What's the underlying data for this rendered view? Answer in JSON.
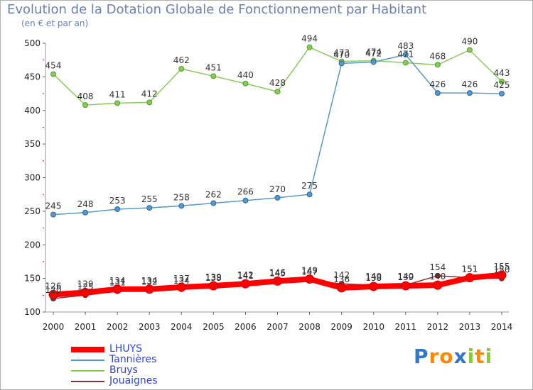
{
  "chart_data": {
    "type": "line",
    "title": "Evolution de la Dotation Globale de Fonctionnement par Habitant",
    "subtitle": "(en € et par an)",
    "xlabel": "",
    "ylabel": "",
    "ylim": [
      100,
      500
    ],
    "yticks": [
      100,
      150,
      200,
      250,
      300,
      350,
      400,
      450,
      500
    ],
    "grid": false,
    "categories": [
      "2000",
      "2001",
      "2002",
      "2003",
      "2004",
      "2005",
      "2006",
      "2007",
      "2008",
      "2009",
      "2010",
      "2011",
      "2012",
      "2013",
      "2014"
    ],
    "series": [
      {
        "name": "LHUYS",
        "color": "#ff0000",
        "values": [
          126,
          129,
          134,
          134,
          137,
          139,
          142,
          146,
          149,
          136,
          138,
          139,
          140,
          151,
          155
        ]
      },
      {
        "name": "Tannières",
        "color": "#5599cc",
        "values": [
          245,
          248,
          253,
          255,
          258,
          262,
          266,
          270,
          275,
          470,
          472,
          483,
          426,
          426,
          425
        ]
      },
      {
        "name": "Bruys",
        "color": "#88cc55",
        "values": [
          454,
          408,
          411,
          412,
          462,
          451,
          440,
          428,
          494,
          473,
          474,
          471,
          468,
          490,
          443
        ]
      },
      {
        "name": "Jouaignes",
        "color": "#883333",
        "values": [
          120,
          125,
          131,
          132,
          134,
          138,
          141,
          145,
          147,
          142,
          140,
          140,
          154,
          151,
          150
        ]
      }
    ]
  },
  "brand": {
    "text": "Proxiti",
    "letters": [
      "P",
      "r",
      "o",
      "x",
      "i",
      "t",
      "i"
    ],
    "colors": [
      "#3377cc",
      "#ff8800",
      "#ff8800",
      "#3377cc",
      "#88cc33",
      "#ff8800",
      "#88cc33"
    ]
  }
}
